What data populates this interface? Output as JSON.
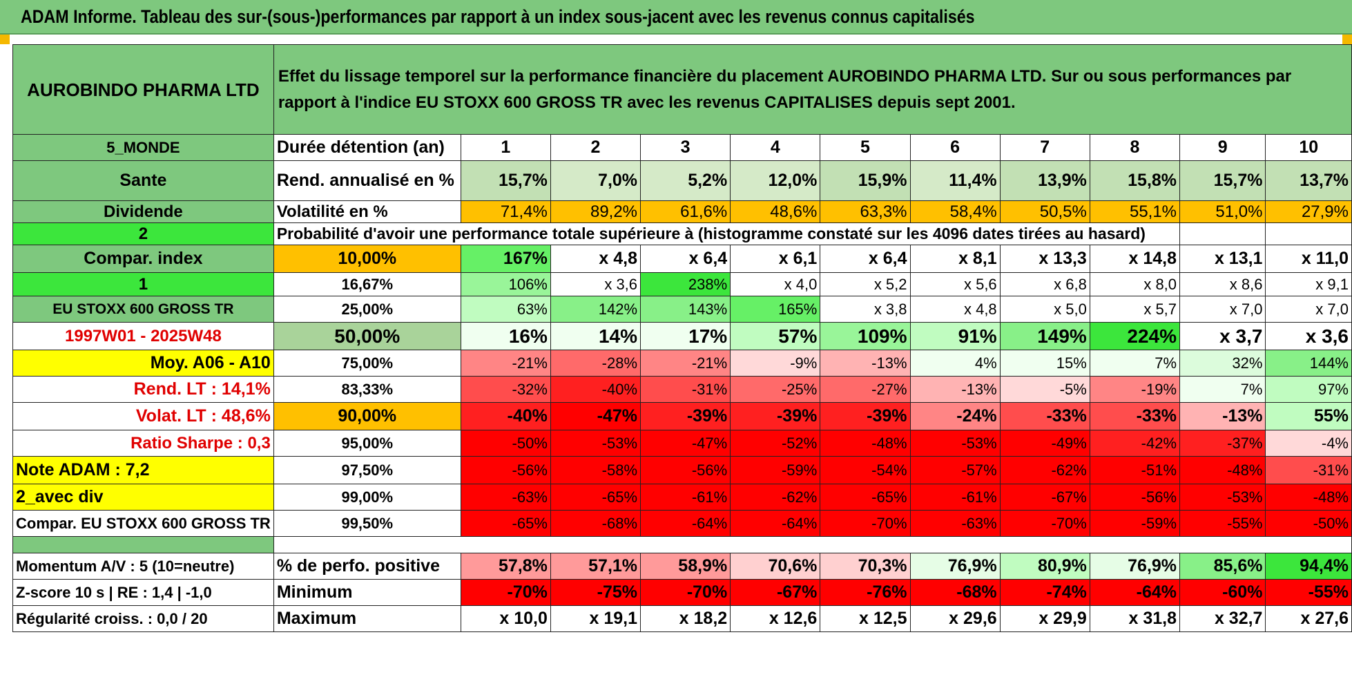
{
  "title": "ADAM Informe. Tableau des sur-(sous-)performances par rapport à un index sous-jacent avec les revenus connus capitalisés",
  "header": {
    "name": "AUROBINDO PHARMA LTD",
    "description": "Effet du lissage temporel sur la performance financière du placement AUROBINDO PHARMA LTD. Sur ou sous performances par rapport à l'indice EU STOXX 600 GROSS TR avec les revenus CAPITALISES depuis sept 2001."
  },
  "rows": [
    {
      "left": "5_MONDE",
      "label": "Durée détention (an)",
      "values": [
        "1",
        "2",
        "3",
        "4",
        "5",
        "6",
        "7",
        "8",
        "9",
        "10"
      ]
    },
    {
      "left": "Sante",
      "label": "Rend. annualisé en %",
      "values": [
        "15,7%",
        "7,0%",
        "5,2%",
        "12,0%",
        "15,9%",
        "11,4%",
        "13,9%",
        "15,8%",
        "15,7%",
        "13,7%"
      ]
    },
    {
      "left": "Dividende",
      "label": "Volatilité en %",
      "values": [
        "71,4%",
        "89,2%",
        "61,6%",
        "48,6%",
        "63,3%",
        "58,4%",
        "50,5%",
        "55,1%",
        "51,0%",
        "27,9%"
      ]
    },
    {
      "left": "2",
      "label": "Probabilité d'avoir une performance totale supérieure à (histogramme constaté sur les 4096 dates tirées au hasard)"
    },
    {
      "left": "Compar. index",
      "label": "10,00%",
      "values": [
        "167%",
        "x 4,8",
        "x 6,4",
        "x 6,1",
        "x 6,4",
        "x 8,1",
        "x 13,3",
        "x 14,8",
        "x 13,1",
        "x 11,0"
      ]
    },
    {
      "left": "1",
      "label": "16,67%",
      "values": [
        "106%",
        "x 3,6",
        "238%",
        "x 4,0",
        "x 5,2",
        "x 5,6",
        "x 6,8",
        "x 8,0",
        "x 8,6",
        "x 9,1"
      ]
    },
    {
      "left": "EU STOXX 600 GROSS TR",
      "label": "25,00%",
      "values": [
        "63%",
        "142%",
        "143%",
        "165%",
        "x 3,8",
        "x 4,8",
        "x 5,0",
        "x 5,7",
        "x 7,0",
        "x 7,0"
      ]
    },
    {
      "left": "1997W01 - 2025W48",
      "label": "50,00%",
      "values": [
        "16%",
        "14%",
        "17%",
        "57%",
        "109%",
        "91%",
        "149%",
        "224%",
        "x 3,7",
        "x 3,6"
      ]
    },
    {
      "left": "Moy. A06 - A10",
      "label": "75,00%",
      "values": [
        "-21%",
        "-28%",
        "-21%",
        "-9%",
        "-13%",
        "4%",
        "15%",
        "7%",
        "32%",
        "144%"
      ]
    },
    {
      "left": "Rend. LT :    14,1%",
      "label": "83,33%",
      "values": [
        "-32%",
        "-40%",
        "-31%",
        "-25%",
        "-27%",
        "-13%",
        "-5%",
        "-19%",
        "7%",
        "97%"
      ]
    },
    {
      "left": "Volat. LT :    48,6%",
      "label": "90,00%",
      "values": [
        "-40%",
        "-47%",
        "-39%",
        "-39%",
        "-39%",
        "-24%",
        "-33%",
        "-33%",
        "-13%",
        "55%"
      ]
    },
    {
      "left": "Ratio Sharpe :     0,3",
      "label": "95,00%",
      "values": [
        "-50%",
        "-53%",
        "-47%",
        "-52%",
        "-48%",
        "-53%",
        "-49%",
        "-42%",
        "-37%",
        "-4%"
      ]
    },
    {
      "left": "Note ADAM : 7,2",
      "label": "97,50%",
      "values": [
        "-56%",
        "-58%",
        "-56%",
        "-59%",
        "-54%",
        "-57%",
        "-62%",
        "-51%",
        "-48%",
        "-31%"
      ]
    },
    {
      "left": "2_avec div",
      "label": "99,00%",
      "values": [
        "-63%",
        "-65%",
        "-61%",
        "-62%",
        "-65%",
        "-61%",
        "-67%",
        "-56%",
        "-53%",
        "-48%"
      ]
    },
    {
      "left": "Compar. EU STOXX 600 GROSS TR",
      "label": "99,50%",
      "values": [
        "-65%",
        "-68%",
        "-64%",
        "-64%",
        "-70%",
        "-63%",
        "-70%",
        "-59%",
        "-55%",
        "-50%"
      ]
    },
    {
      "left": "Momentum A/V : 5 (10=neutre)",
      "label": "% de perfo. positive",
      "values": [
        "57,8%",
        "57,1%",
        "58,9%",
        "70,6%",
        "70,3%",
        "76,9%",
        "80,9%",
        "76,9%",
        "85,6%",
        "94,4%"
      ]
    },
    {
      "left": "Z-score 10 s | RE : 1,4 | -1,0",
      "label": "Minimum",
      "values": [
        "-70%",
        "-75%",
        "-70%",
        "-67%",
        "-76%",
        "-68%",
        "-74%",
        "-64%",
        "-60%",
        "-55%"
      ]
    },
    {
      "left": "Régularité croiss. : 0,0 / 20",
      "label": "Maximum",
      "values": [
        "x 10,0",
        "x 19,1",
        "x 18,2",
        "x 12,6",
        "x 12,5",
        "x 29,6",
        "x 29,9",
        "x 31,8",
        "x 32,7",
        "x 27,6"
      ]
    }
  ]
}
